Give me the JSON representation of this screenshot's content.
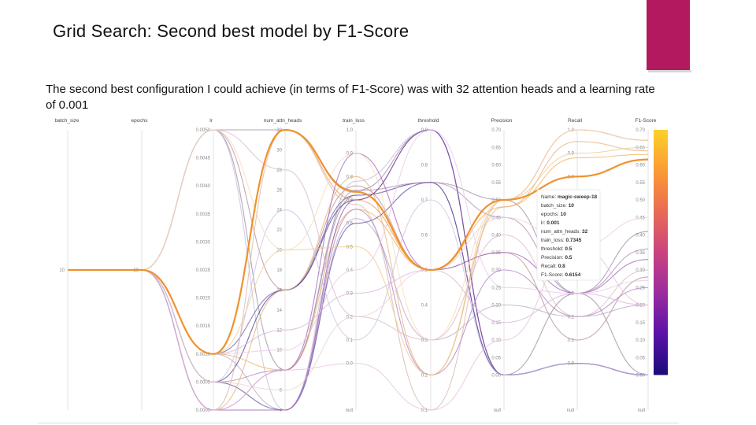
{
  "slide": {
    "title": "Grid Search: Second best model by F1-Score",
    "description": "The second best configuration I could achieve (in terms of F1-Score)  was with 32 attention heads and a learning rate of 0.001",
    "accent_color": "#b3195f"
  },
  "chart_data": {
    "type": "parallel_coordinates",
    "axes": [
      {
        "key": "batch_size",
        "label": "batch_size",
        "range": [
          0,
          20
        ],
        "ticks": [
          "10"
        ],
        "tick_values": [
          10
        ]
      },
      {
        "key": "epochs",
        "label": "epochs",
        "range": [
          0,
          20
        ],
        "ticks": [
          "10"
        ],
        "tick_values": [
          10
        ]
      },
      {
        "key": "lr",
        "label": "lr",
        "range": [
          0,
          0.005
        ],
        "ticks": [
          "0.0050",
          "0.0045",
          "0.0040",
          "0.0035",
          "0.0030",
          "0.0025",
          "0.0020",
          "0.0015",
          "0.0010",
          "0.0005",
          "0.0000"
        ],
        "tick_values": [
          0.005,
          0.0045,
          0.004,
          0.0035,
          0.003,
          0.0025,
          0.002,
          0.0015,
          0.001,
          0.0005,
          0
        ]
      },
      {
        "key": "num_attn_heads",
        "label": "num_attn_heads",
        "range": [
          4,
          32
        ],
        "ticks": [
          "32",
          "30",
          "28",
          "26",
          "24",
          "22",
          "20",
          "18",
          "16",
          "14",
          "12",
          "10",
          "8",
          "6",
          "4"
        ],
        "tick_values": [
          32,
          30,
          28,
          26,
          24,
          22,
          20,
          18,
          16,
          14,
          12,
          10,
          8,
          6,
          4
        ]
      },
      {
        "key": "train_loss",
        "label": "train_loss",
        "range": [
          -0.2,
          1.0
        ],
        "ticks": [
          "1.0",
          "0.9",
          "0.8",
          "0.7",
          "0.6",
          "0.5",
          "0.4",
          "0.3",
          "0.2",
          "0.1",
          "0.0",
          "null"
        ],
        "tick_values": [
          1.0,
          0.9,
          0.8,
          0.7,
          0.6,
          0.5,
          0.4,
          0.3,
          0.2,
          0.1,
          0.0,
          null
        ]
      },
      {
        "key": "threshold",
        "label": "threshold",
        "range": [
          0.1,
          0.9
        ],
        "ticks": [
          "0.9",
          "0.8",
          "0.7",
          "0.6",
          "0.5",
          "0.4",
          "0.3",
          "0.2",
          "0.1"
        ],
        "tick_values": [
          0.9,
          0.8,
          0.7,
          0.6,
          0.5,
          0.4,
          0.3,
          0.2,
          0.1
        ]
      },
      {
        "key": "precision",
        "label": "Precision",
        "range": [
          -0.1,
          0.7
        ],
        "ticks": [
          "0.70",
          "0.65",
          "0.60",
          "0.55",
          "0.50",
          "0.45",
          "0.40",
          "0.35",
          "0.30",
          "0.25",
          "0.20",
          "0.15",
          "0.10",
          "0.05",
          "0.00",
          "null"
        ],
        "tick_values": [
          0.7,
          0.65,
          0.6,
          0.55,
          0.5,
          0.45,
          0.4,
          0.35,
          0.3,
          0.25,
          0.2,
          0.15,
          0.1,
          0.05,
          0,
          null
        ]
      },
      {
        "key": "recall",
        "label": "Recall",
        "range": [
          -0.2,
          1.0
        ],
        "ticks": [
          "1.0",
          "0.9",
          "0.8",
          "0.7",
          "0.6",
          "0.5",
          "0.4",
          "0.3",
          "0.2",
          "0.1",
          "0.0",
          "null"
        ],
        "tick_values": [
          1.0,
          0.9,
          0.8,
          0.7,
          0.6,
          0.5,
          0.4,
          0.3,
          0.2,
          0.1,
          0.0,
          null
        ]
      },
      {
        "key": "f1",
        "label": "F1-Score",
        "range": [
          -0.1,
          0.7
        ],
        "ticks": [
          "0.70",
          "0.65",
          "0.60",
          "0.55",
          "0.50",
          "0.45",
          "0.40",
          "0.35",
          "0.30",
          "0.25",
          "0.20",
          "0.15",
          "0.10",
          "0.05",
          "0.00",
          "null"
        ],
        "tick_values": [
          0.7,
          0.65,
          0.6,
          0.55,
          0.5,
          0.45,
          0.4,
          0.35,
          0.3,
          0.25,
          0.2,
          0.15,
          0.1,
          0.05,
          0,
          null
        ]
      }
    ],
    "colorbar": {
      "label": "F1-Score",
      "range": [
        0,
        0.7
      ],
      "stops": [
        "#1b0c7a",
        "#5b11a8",
        "#9a2ba0",
        "#c9437f",
        "#ea6a55",
        "#fb9b33",
        "#fcd12a"
      ]
    },
    "highlighted_run": {
      "name": "magic-sweep-18",
      "color": "#f0922d",
      "values": {
        "batch_size": 10,
        "epochs": 10,
        "lr": 0.001,
        "num_attn_heads": 32,
        "train_loss": 0.7345,
        "threshold": 0.5,
        "precision": 0.5,
        "recall": 0.8,
        "f1": 0.6154
      }
    },
    "runs": [
      {
        "values": [
          10,
          10,
          0.005,
          32,
          0.74,
          0.9,
          0.0,
          0.3,
          0.0
        ],
        "color": "#9a8aa0"
      },
      {
        "values": [
          10,
          10,
          0.005,
          16,
          0.76,
          0.5,
          0.35,
          0.1,
          0.28
        ],
        "color": "#b79090"
      },
      {
        "values": [
          10,
          10,
          0.005,
          8,
          0.72,
          0.75,
          0.5,
          0.3,
          0.41
        ],
        "color": "#9b8ca8"
      },
      {
        "values": [
          10,
          10,
          0.005,
          4,
          0.78,
          0.9,
          0.0,
          0.0,
          0.0
        ],
        "color": "#c2bfd3"
      },
      {
        "values": [
          10,
          10,
          0.001,
          32,
          0.7,
          0.5,
          0.5,
          1.0,
          0.67
        ],
        "color": "#e79a55"
      },
      {
        "values": [
          10,
          10,
          0.001,
          16,
          0.72,
          0.75,
          0.0,
          0.0,
          0.0
        ],
        "color": "#6f5ea0"
      },
      {
        "values": [
          10,
          10,
          0.001,
          8,
          0.66,
          0.5,
          0.48,
          0.88,
          0.63
        ],
        "color": "#f0b25a"
      },
      {
        "values": [
          10,
          10,
          0.001,
          4,
          0.62,
          0.3,
          0.2,
          0.2,
          0.2
        ],
        "color": "#b8a8c8"
      },
      {
        "values": [
          10,
          10,
          0.0005,
          16,
          0.7,
          0.9,
          0.0,
          0.0,
          0.0
        ],
        "color": "#4a3f8f"
      },
      {
        "values": [
          10,
          10,
          0.0005,
          8,
          0.74,
          0.75,
          0.45,
          0.3,
          0.36
        ],
        "color": "#b089b8"
      },
      {
        "values": [
          10,
          10,
          0.0005,
          4,
          0.6,
          0.75,
          0.0,
          0.0,
          0.0
        ],
        "color": "#5b4ca1"
      },
      {
        "values": [
          10,
          10,
          0.0,
          32,
          0.68,
          0.1,
          0.5,
          1.0,
          0.67
        ],
        "color": "#d9b6a5"
      },
      {
        "values": [
          10,
          10,
          0.0,
          16,
          0.8,
          0.2,
          0.48,
          0.95,
          0.64
        ],
        "color": "#e7b07c"
      },
      {
        "values": [
          10,
          10,
          0.0,
          8,
          0.9,
          0.5,
          0.35,
          0.3,
          0.33
        ],
        "color": "#a064b5"
      },
      {
        "values": [
          10,
          10,
          0.0,
          4,
          0.7,
          0.9,
          0.0,
          0.0,
          0.0
        ],
        "color": "#8d4fb0"
      },
      {
        "values": [
          10,
          10,
          0.0,
          4,
          0.66,
          0.2,
          0.3,
          0.2,
          0.25
        ],
        "color": "#b07fc0"
      },
      {
        "values": [
          10,
          10,
          0.001,
          20,
          0.5,
          0.2,
          0.5,
          0.9,
          0.65
        ],
        "color": "#efc98e"
      },
      {
        "values": [
          10,
          10,
          0.001,
          12,
          0.3,
          0.5,
          0.15,
          0.3,
          0.2
        ],
        "color": "#d8b4d9"
      },
      {
        "values": [
          10,
          10,
          0.0005,
          24,
          0.1,
          0.7,
          0.0,
          0.0,
          0.0
        ],
        "color": "#c9c1df"
      },
      {
        "values": [
          10,
          10,
          0.005,
          28,
          0.2,
          0.3,
          0.4,
          0.2,
          0.3
        ],
        "color": "#dbb8c8"
      },
      {
        "values": [
          10,
          10,
          0.0,
          8,
          0.0,
          0.1,
          0.1,
          0.5,
          0.2
        ],
        "color": "#e6c2de"
      },
      {
        "values": [
          10,
          10,
          0.001,
          10,
          0.4,
          0.9,
          0.25,
          0.3,
          0.27
        ],
        "color": "#e6c8e6"
      },
      {
        "values": [
          10,
          10,
          0.0005,
          6,
          0.2,
          0.5,
          0.45,
          0.5,
          0.45
        ],
        "color": "#ead2cc"
      },
      {
        "values": [
          10,
          10,
          0.005,
          20,
          0.9,
          0.3,
          0.5,
          1.0,
          0.67
        ],
        "color": "#f4d9b8"
      }
    ]
  }
}
